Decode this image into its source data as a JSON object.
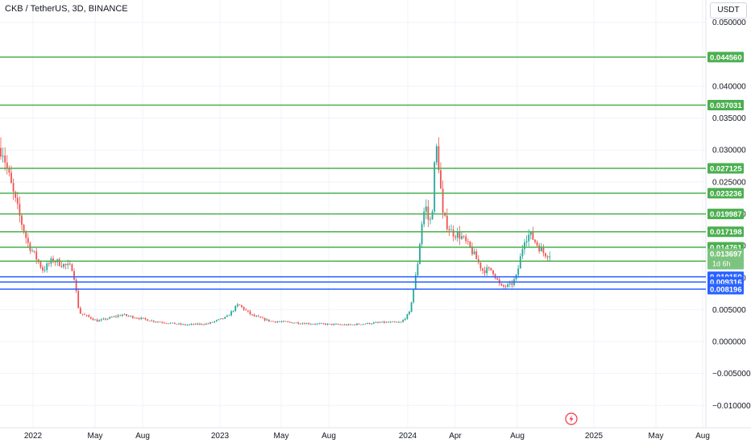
{
  "header": {
    "title": "CKB / TetherUS, 3D, BINANCE",
    "currency": "USDT"
  },
  "icons": {
    "flash": "lightning-icon"
  },
  "colors": {
    "up": "#26a69a",
    "down": "#ef5350",
    "resistance": "#4caf50",
    "support": "#2962ff",
    "current_label": "#7cc47f",
    "grid": "#f0f3fa"
  },
  "chart_data": {
    "type": "candlestick",
    "title": "CKB / TetherUS, 3D, BINANCE",
    "x_tick_labels": [
      "2022",
      "May",
      "Aug",
      "2023",
      "May",
      "Aug",
      "2024",
      "Apr",
      "Aug",
      "2025",
      "May",
      "Aug"
    ],
    "y_tick_values": [
      0.05,
      0.04,
      0.035,
      0.03,
      0.025,
      0.02,
      0.015,
      0.01,
      0.005,
      0,
      -0.005,
      -0.01
    ],
    "y_tick_labels": [
      "0.050000",
      "0.040000",
      "0.035000",
      "0.030000",
      "0.025000",
      "0.020000",
      "0.015000",
      "0.010000",
      "0.005000",
      "0.000000",
      "−0.005000",
      "−0.010000"
    ],
    "ylim": [
      -0.0135,
      0.0535
    ],
    "grid": true,
    "resistance_levels": [
      {
        "value": 0.04456,
        "label": "0.044560"
      },
      {
        "value": 0.037031,
        "label": "0.037031"
      },
      {
        "value": 0.027125,
        "label": "0.027125"
      },
      {
        "value": 0.023236,
        "label": "0.023236"
      },
      {
        "value": 0.019987,
        "label": "0.019987"
      },
      {
        "value": 0.017198,
        "label": "0.017198"
      },
      {
        "value": 0.014761,
        "label": "0.014761"
      },
      {
        "value": 0.012587,
        "label": "0.012587"
      }
    ],
    "support_levels": [
      {
        "value": 0.01015,
        "label": "0.010150"
      },
      {
        "value": 0.009316,
        "label": "0.009316"
      },
      {
        "value": 0.008196,
        "label": "0.008196"
      }
    ],
    "current_price": {
      "value": 0.013697,
      "label": "0.013697",
      "countdown": "1d 6h"
    },
    "price_path": [
      [
        "2021-12-01",
        0.0245
      ],
      [
        "2021-12-10",
        0.031
      ],
      [
        "2021-12-20",
        0.0275
      ],
      [
        "2022-01-01",
        0.0235
      ],
      [
        "2022-01-15",
        0.0195
      ],
      [
        "2022-01-30",
        0.0155
      ],
      [
        "2022-02-15",
        0.0132
      ],
      [
        "2022-03-01",
        0.0112
      ],
      [
        "2022-03-20",
        0.0128
      ],
      [
        "2022-04-10",
        0.012
      ],
      [
        "2022-04-28",
        0.0115
      ],
      [
        "2022-05-10",
        0.0045
      ],
      [
        "2022-06-15",
        0.0032
      ],
      [
        "2022-08-01",
        0.0042
      ],
      [
        "2022-10-01",
        0.0032
      ],
      [
        "2022-12-01",
        0.0026
      ],
      [
        "2023-01-15",
        0.0028
      ],
      [
        "2023-02-20",
        0.0038
      ],
      [
        "2023-03-15",
        0.0058
      ],
      [
        "2023-04-10",
        0.0041
      ],
      [
        "2023-05-15",
        0.0032
      ],
      [
        "2023-08-01",
        0.0028
      ],
      [
        "2023-10-15",
        0.0026
      ],
      [
        "2023-12-20",
        0.003
      ],
      [
        "2024-01-25",
        0.003
      ],
      [
        "2024-02-10",
        0.0045
      ],
      [
        "2024-02-25",
        0.0115
      ],
      [
        "2024-03-05",
        0.0185
      ],
      [
        "2024-03-12",
        0.0215
      ],
      [
        "2024-03-20",
        0.018
      ],
      [
        "2024-03-26",
        0.0215
      ],
      [
        "2024-04-01",
        0.031
      ],
      [
        "2024-04-06",
        0.0285
      ],
      [
        "2024-04-15",
        0.0195
      ],
      [
        "2024-05-01",
        0.0172
      ],
      [
        "2024-05-20",
        0.0165
      ],
      [
        "2024-06-10",
        0.0142
      ],
      [
        "2024-07-01",
        0.0112
      ],
      [
        "2024-07-20",
        0.0112
      ],
      [
        "2024-08-05",
        0.0085
      ],
      [
        "2024-08-25",
        0.0088
      ],
      [
        "2024-09-05",
        0.0102
      ],
      [
        "2024-09-20",
        0.0162
      ],
      [
        "2024-10-01",
        0.0168
      ],
      [
        "2024-10-15",
        0.0152
      ],
      [
        "2024-10-28",
        0.0138
      ],
      [
        "2024-11-10",
        0.0137
      ]
    ]
  }
}
